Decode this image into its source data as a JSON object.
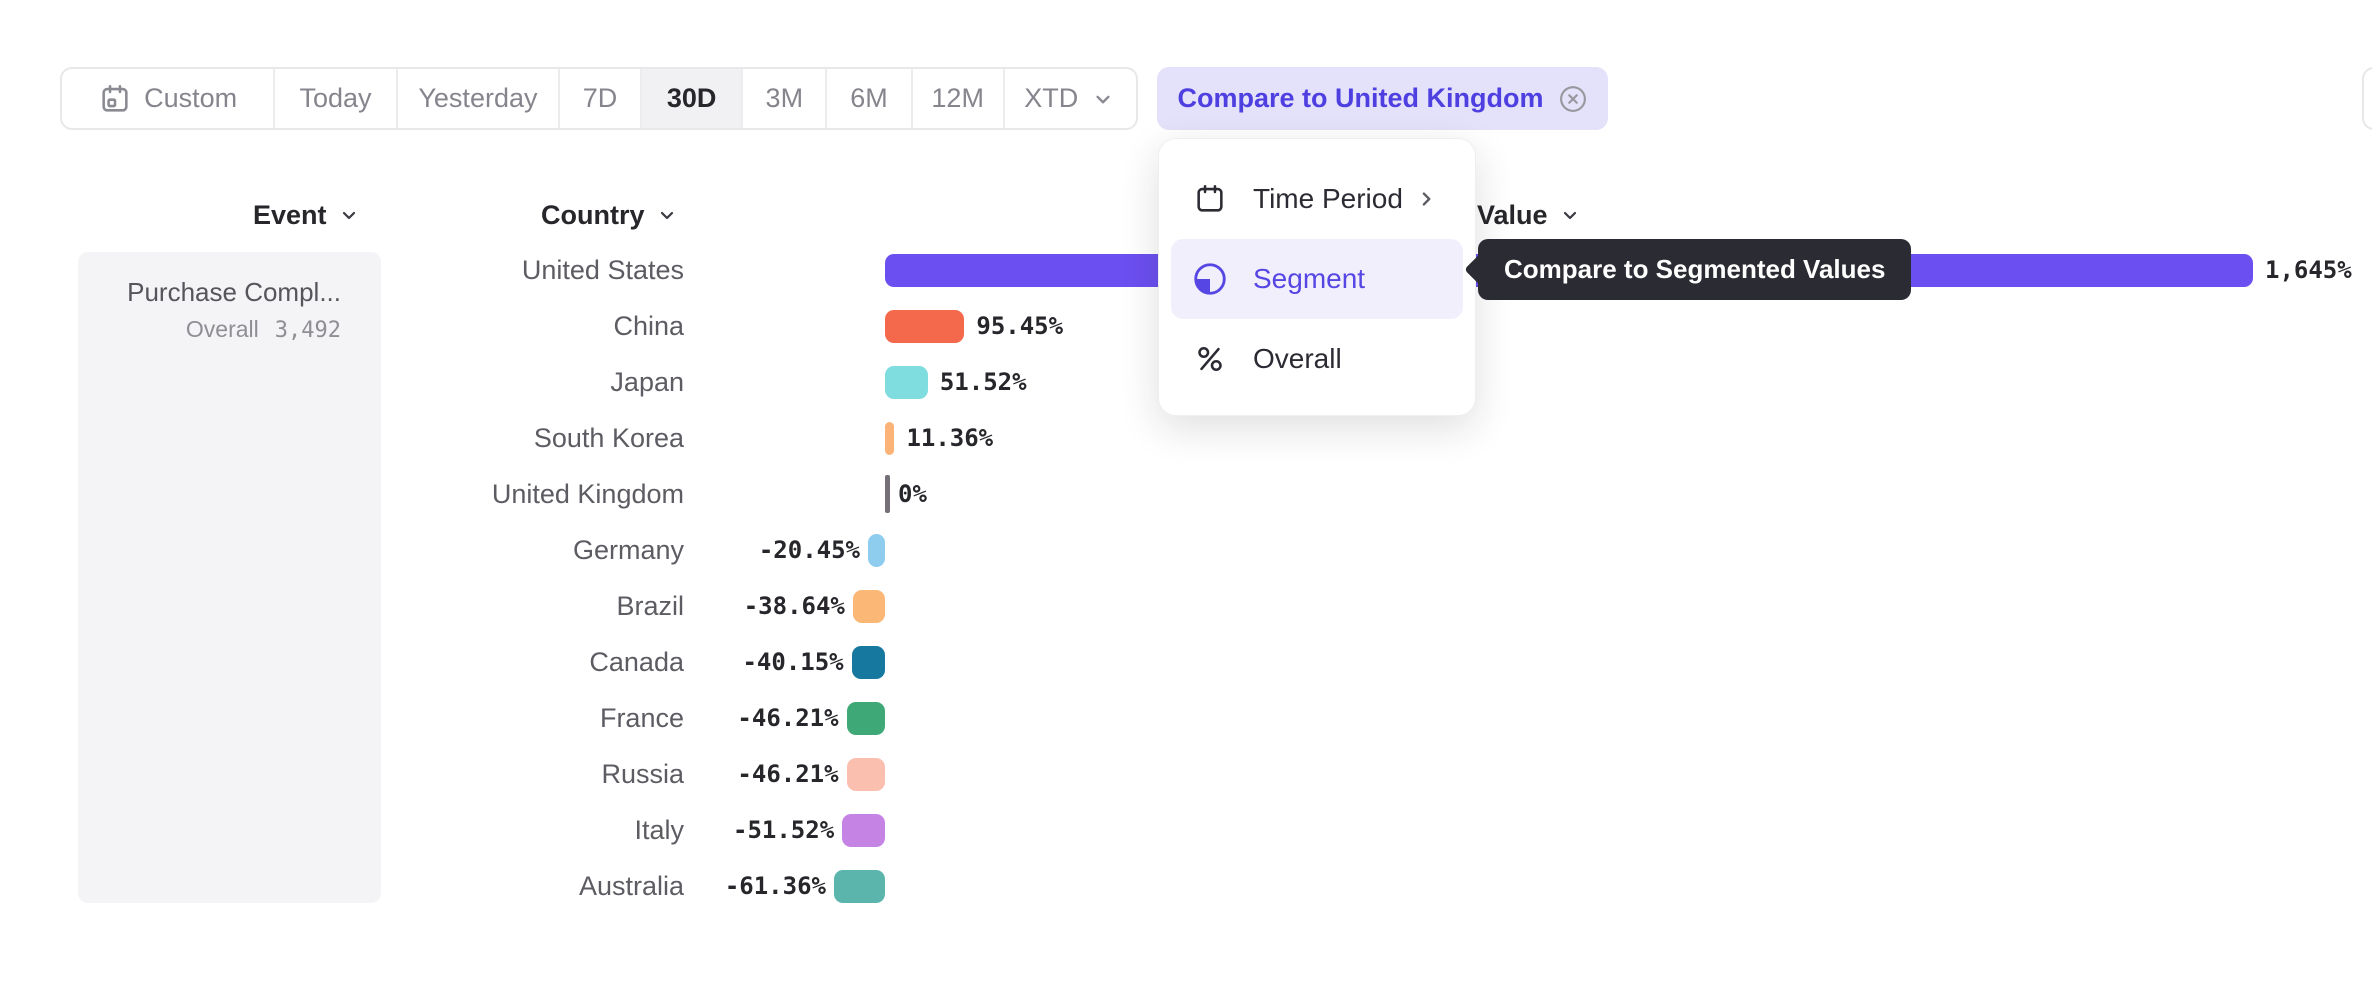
{
  "toolbar": {
    "items": [
      {
        "label": "Custom",
        "icon": "calendar-icon"
      },
      {
        "label": "Today"
      },
      {
        "label": "Yesterday"
      },
      {
        "label": "7D"
      },
      {
        "label": "30D",
        "selected": true
      },
      {
        "label": "3M"
      },
      {
        "label": "6M"
      },
      {
        "label": "12M"
      },
      {
        "label": "XTD",
        "chevron": true
      }
    ]
  },
  "compare_button": {
    "label": "Compare to United Kingdom"
  },
  "columns": {
    "event": "Event",
    "country": "Country",
    "value": "Value"
  },
  "event_panel": {
    "title": "Purchase Compl...",
    "overall_label": "Overall",
    "overall_value": "3,492"
  },
  "menu": {
    "items": [
      {
        "label": "Time Period",
        "icon": "calendar-icon",
        "submenu": true
      },
      {
        "label": "Segment",
        "icon": "segment-icon",
        "active": true
      },
      {
        "label": "Overall",
        "icon": "percent-icon"
      }
    ]
  },
  "tooltip": {
    "text": "Compare to Segmented Values"
  },
  "chart_data": {
    "type": "bar",
    "orientation": "horizontal",
    "title": "",
    "xlabel": "",
    "ylabel": "Country",
    "unit": "%",
    "baseline_category": "United Kingdom",
    "categories": [
      "United States",
      "China",
      "Japan",
      "South Korea",
      "United Kingdom",
      "Germany",
      "Brazil",
      "Canada",
      "France",
      "Russia",
      "Italy",
      "Australia"
    ],
    "values": [
      1645,
      95.45,
      51.52,
      11.36,
      0,
      -20.45,
      -38.64,
      -40.15,
      -46.21,
      -46.21,
      -51.52,
      -61.36
    ],
    "labels": [
      "1,645%",
      "95.45%",
      "51.52%",
      "11.36%",
      "0%",
      "-20.45%",
      "-38.64%",
      "-40.15%",
      "-46.21%",
      "-46.21%",
      "-51.52%",
      "-61.36%"
    ],
    "colors": [
      "#6C4FF1",
      "#F4694B",
      "#7FDCDF",
      "#FBB377",
      "#757077",
      "#8FCDEF",
      "#FBB776",
      "#17789F",
      "#3EA976",
      "#FBBFB0",
      "#C583E4",
      "#5CB5AC"
    ],
    "patterns": [
      null,
      null,
      null,
      null,
      null,
      "dots-purple",
      "dots-white",
      null,
      null,
      null,
      null,
      null
    ]
  },
  "colors": {
    "accent": "#5646E4",
    "accent_button_bg": "#E4E1FB",
    "menu_highlight_bg": "#F2EFFC",
    "tooltip_bg": "#2B2B33",
    "selected_segment_bg": "#F1F1F3",
    "panel_bg": "#F4F4F6"
  }
}
